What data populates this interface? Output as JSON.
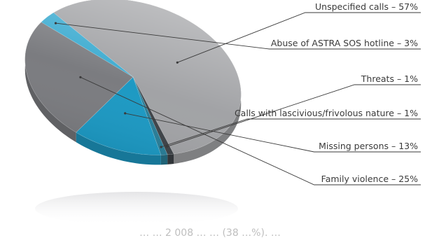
{
  "chart_data": {
    "type": "pie",
    "style": "3D tilted pie with callout leader lines",
    "unit": "%",
    "slices": [
      {
        "label": "Unspecified calls",
        "value": 57,
        "text": "Unspecified calls – 57%",
        "color": "#a2a3a6"
      },
      {
        "label": "Threats",
        "value": 1,
        "text": "Threats – 1%",
        "color": "#3f4449"
      },
      {
        "label": "Calls with lascivious/frivolous nature",
        "value": 1,
        "text": "Calls with lascivious/frivolous nature – 1%",
        "color": "#2a7f99"
      },
      {
        "label": "Missing persons",
        "value": 13,
        "text": "Missing persons – 13%",
        "color": "#1d99c3"
      },
      {
        "label": "Family violence",
        "value": 25,
        "text": "Family violence – 25%",
        "color": "#7b7c80"
      },
      {
        "label": "Abuse of ASTRA SOS hotline",
        "value": 3,
        "text": "Abuse of ASTRA SOS hotline – 3%",
        "color": "#3cabd0"
      }
    ]
  },
  "footer_text": "… … 2 008 … … (38 …%). …"
}
